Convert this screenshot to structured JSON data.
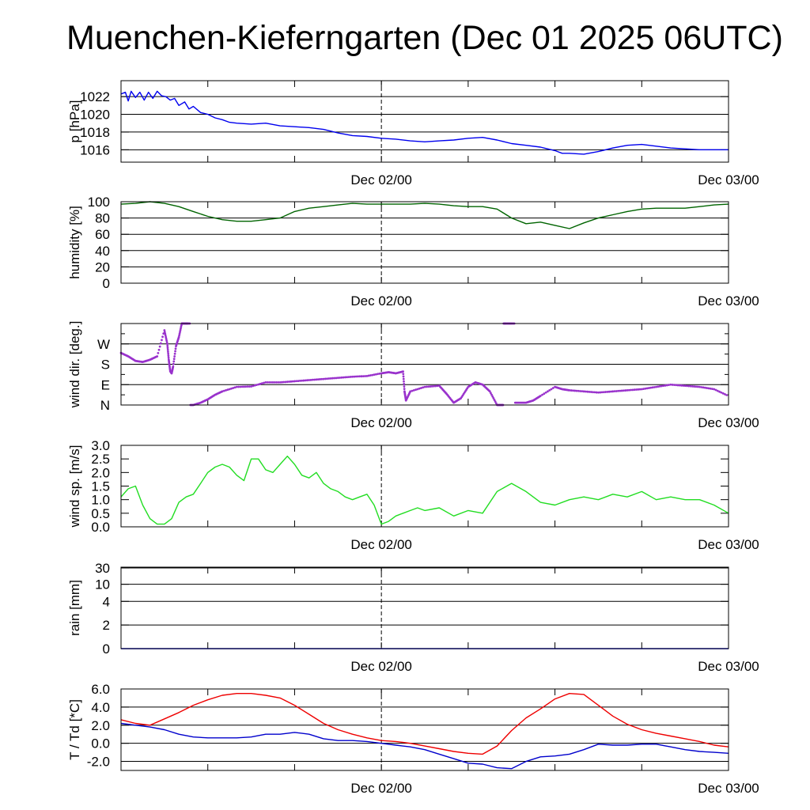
{
  "title": "Muenchen-Kieferngarten (Dec 01 2025 06UTC)",
  "chart_data": [
    {
      "type": "line",
      "id": "pressure",
      "ylabel": "p [hPa]",
      "yticks": [
        1016,
        1018,
        1020,
        1022
      ],
      "ylim": [
        1014.6,
        1023.8
      ],
      "grid": true,
      "x_unit": "hours since Dec 01 2025 06UTC",
      "xlim": [
        0,
        42
      ],
      "xticks": [
        {
          "x": 18,
          "label": "Dec 02/00"
        },
        {
          "x": 42,
          "label": "Dec 03/00"
        }
      ],
      "series": [
        {
          "color": "#0000ee",
          "x": [
            0,
            0.3,
            0.5,
            0.7,
            1.0,
            1.3,
            1.6,
            1.9,
            2.2,
            2.5,
            2.8,
            3.1,
            3.4,
            3.7,
            4.0,
            4.4,
            4.7,
            5.0,
            5.5,
            6.0,
            6.5,
            7.0,
            7.5,
            8.0,
            9.0,
            10.0,
            11.0,
            12.0,
            13.0,
            14.0,
            15.0,
            16.0,
            17.0,
            18.0,
            19.0,
            20.0,
            21.0,
            22.0,
            23.0,
            24.0,
            25.0,
            26.0,
            27.0,
            28.0,
            29.0,
            30.0,
            30.5,
            31.0,
            32.0,
            33.0,
            34.0,
            35.0,
            36.0,
            37.0,
            38.0,
            39.0,
            40.0,
            41.0,
            42.0
          ],
          "y": [
            1022.3,
            1022.5,
            1021.5,
            1022.6,
            1021.9,
            1022.5,
            1021.6,
            1022.5,
            1021.8,
            1022.6,
            1022.1,
            1022.0,
            1021.6,
            1021.8,
            1021.0,
            1021.4,
            1020.6,
            1020.9,
            1020.2,
            1020.0,
            1019.6,
            1019.4,
            1019.1,
            1019.0,
            1018.9,
            1019.0,
            1018.7,
            1018.6,
            1018.5,
            1018.3,
            1017.9,
            1017.6,
            1017.5,
            1017.3,
            1017.2,
            1017.0,
            1016.9,
            1017.0,
            1017.1,
            1017.3,
            1017.4,
            1017.1,
            1016.7,
            1016.5,
            1016.3,
            1015.9,
            1015.6,
            1015.6,
            1015.5,
            1015.8,
            1016.2,
            1016.5,
            1016.6,
            1016.4,
            1016.2,
            1016.1,
            1016.0,
            1016.0,
            1016.0
          ]
        }
      ]
    },
    {
      "type": "line",
      "id": "humidity",
      "ylabel": "humidity [%]",
      "yticks": [
        0,
        20,
        40,
        60,
        80,
        100
      ],
      "ylim": [
        0,
        100
      ],
      "grid": true,
      "x_unit": "hours since Dec 01 2025 06UTC",
      "xlim": [
        0,
        42
      ],
      "xticks": [
        {
          "x": 18,
          "label": "Dec 02/00"
        },
        {
          "x": 42,
          "label": "Dec 03/00"
        }
      ],
      "series": [
        {
          "color": "#006400",
          "x": [
            0,
            1,
            2,
            3,
            4,
            5,
            6,
            7,
            8,
            9,
            10,
            11,
            12,
            13,
            14,
            15,
            16,
            17,
            18,
            19,
            20,
            21,
            22,
            23,
            24,
            25,
            26,
            27,
            28,
            29,
            30,
            31,
            32,
            33,
            34,
            35,
            36,
            37,
            38,
            39,
            40,
            41,
            42
          ],
          "y": [
            97,
            98,
            100,
            98,
            94,
            88,
            82,
            78,
            76,
            76,
            78,
            80,
            88,
            92,
            94,
            96,
            98,
            97,
            97,
            97,
            97,
            98,
            97,
            95,
            94,
            94,
            91,
            80,
            73,
            75,
            71,
            67,
            74,
            80,
            84,
            88,
            91,
            92,
            92,
            92,
            94,
            96,
            97
          ]
        }
      ]
    },
    {
      "type": "scatter",
      "id": "wind-direction",
      "ylabel": "wind dir. [deg.]",
      "yticks": [
        {
          "value": 0,
          "label": "N"
        },
        {
          "value": 90,
          "label": "E"
        },
        {
          "value": 180,
          "label": "S"
        },
        {
          "value": 270,
          "label": "W"
        }
      ],
      "ylim": [
        0,
        360
      ],
      "grid": true,
      "x_unit": "hours since Dec 01 2025 06UTC",
      "xlim": [
        0,
        42
      ],
      "xticks": [
        {
          "x": 18,
          "label": "Dec 02/00"
        },
        {
          "x": 42,
          "label": "Dec 03/00"
        }
      ],
      "series": [
        {
          "color": "#9932cc",
          "x": [
            0,
            0.5,
            1.0,
            1.5,
            2.0,
            2.5,
            3.0,
            3.2,
            3.3,
            3.4,
            3.5,
            3.6,
            3.8,
            4.0,
            4.2,
            4.3,
            4.5,
            4.6,
            5.0,
            5.5,
            6.0,
            6.5,
            7.0,
            8.0,
            9.0,
            10.0,
            11.0,
            12.0,
            13.0,
            14.0,
            15.0,
            16.0,
            17.0,
            18.0,
            18.5,
            19.0,
            19.5,
            19.6,
            19.7,
            20.0,
            21.0,
            22.0,
            22.5,
            23.0,
            23.5,
            24.0,
            24.5,
            25.0,
            25.5,
            26.0,
            26.3,
            26.6,
            27.0,
            27.5,
            28.0,
            28.5,
            29.0,
            30.0,
            30.5,
            31.0,
            32.0,
            33.0,
            34.0,
            35.0,
            36.0,
            37.0,
            38.0,
            39.0,
            40.0,
            41.0,
            42.0
          ],
          "y": [
            230,
            215,
            195,
            190,
            200,
            215,
            330,
            270,
            200,
            150,
            140,
            170,
            260,
            300,
            360,
            360,
            360,
            360,
            0,
            10,
            25,
            45,
            60,
            80,
            82,
            100,
            100,
            105,
            110,
            115,
            120,
            125,
            128,
            140,
            145,
            140,
            148,
            60,
            20,
            60,
            80,
            85,
            50,
            10,
            30,
            80,
            100,
            90,
            60,
            0,
            0,
            360,
            360,
            10,
            10,
            20,
            40,
            80,
            70,
            65,
            60,
            55,
            60,
            65,
            70,
            80,
            90,
            85,
            80,
            70,
            40
          ]
        }
      ]
    },
    {
      "type": "line",
      "id": "wind-speed",
      "ylabel": "wind sp. [m/s]",
      "yticks": [
        0.0,
        0.5,
        1.0,
        1.5,
        2.0,
        2.5,
        3.0
      ],
      "ylim": [
        0,
        3.0
      ],
      "grid": false,
      "x_unit": "hours since Dec 01 2025 06UTC",
      "xlim": [
        0,
        42
      ],
      "xticks": [
        {
          "x": 18,
          "label": "Dec 02/00"
        },
        {
          "x": 42,
          "label": "Dec 03/00"
        }
      ],
      "series": [
        {
          "color": "#22dd22",
          "x": [
            0,
            0.5,
            1.0,
            1.5,
            2.0,
            2.5,
            3.0,
            3.5,
            4.0,
            4.5,
            5.0,
            5.5,
            6.0,
            6.5,
            7.0,
            7.5,
            8.0,
            8.5,
            9.0,
            9.5,
            10.0,
            10.5,
            11.0,
            11.5,
            12.0,
            12.5,
            13.0,
            13.5,
            14.0,
            14.5,
            15.0,
            15.5,
            16.0,
            16.5,
            17.0,
            17.5,
            18.0,
            18.5,
            19.0,
            19.5,
            20.0,
            20.5,
            21.0,
            22.0,
            23.0,
            24.0,
            25.0,
            26.0,
            27.0,
            28.0,
            29.0,
            30.0,
            31.0,
            32.0,
            33.0,
            34.0,
            35.0,
            36.0,
            37.0,
            38.0,
            39.0,
            40.0,
            41.0,
            42.0
          ],
          "y": [
            1.1,
            1.4,
            1.5,
            0.8,
            0.3,
            0.1,
            0.1,
            0.3,
            0.9,
            1.1,
            1.2,
            1.6,
            2.0,
            2.2,
            2.3,
            2.2,
            1.9,
            1.7,
            2.5,
            2.5,
            2.1,
            2.0,
            2.3,
            2.6,
            2.3,
            1.9,
            1.8,
            2.0,
            1.6,
            1.4,
            1.3,
            1.1,
            1.0,
            1.1,
            1.2,
            0.8,
            0.1,
            0.2,
            0.4,
            0.5,
            0.6,
            0.7,
            0.6,
            0.7,
            0.4,
            0.6,
            0.5,
            1.3,
            1.6,
            1.3,
            0.9,
            0.8,
            1.0,
            1.1,
            1.0,
            1.2,
            1.1,
            1.3,
            1.0,
            1.1,
            1.0,
            1.0,
            0.8,
            0.5
          ]
        }
      ]
    },
    {
      "type": "line",
      "id": "rain",
      "ylabel": "rain [mm]",
      "yticks": [
        {
          "value": 0,
          "label": "0"
        },
        {
          "value": 2,
          "label": "2"
        },
        {
          "value": 4,
          "label": "4"
        },
        {
          "value": 10,
          "label": "10"
        },
        {
          "value": 30,
          "label": "30"
        }
      ],
      "ylim": [
        0,
        30
      ],
      "grid": true,
      "x_unit": "hours since Dec 01 2025 06UTC",
      "xlim": [
        0,
        42
      ],
      "xticks": [
        {
          "x": 18,
          "label": "Dec 02/00"
        },
        {
          "x": 42,
          "label": "Dec 03/00"
        }
      ],
      "series": [
        {
          "color": "#0000ee",
          "x": [
            0,
            42
          ],
          "y": [
            0,
            0
          ]
        }
      ]
    },
    {
      "type": "line",
      "id": "temperature",
      "ylabel": "T / Td [*C]",
      "yticks": [
        -2.0,
        0.0,
        2.0,
        4.0,
        6.0
      ],
      "ylim": [
        -3.0,
        6.0
      ],
      "grid": true,
      "x_unit": "hours since Dec 01 2025 06UTC",
      "xlim": [
        0,
        42
      ],
      "xticks": [
        {
          "x": 18,
          "label": "Dec 02/00"
        },
        {
          "x": 42,
          "label": "Dec 03/00"
        }
      ],
      "series": [
        {
          "color": "#ee0000",
          "x": [
            0,
            1,
            2,
            3,
            4,
            5,
            6,
            7,
            8,
            9,
            10,
            11,
            12,
            13,
            14,
            15,
            16,
            17,
            18,
            19,
            20,
            21,
            22,
            23,
            24,
            25,
            26,
            27,
            28,
            29,
            30,
            31,
            32,
            33,
            34,
            35,
            36,
            37,
            38,
            39,
            40,
            41,
            42
          ],
          "y": [
            2.6,
            2.2,
            2.0,
            2.7,
            3.4,
            4.2,
            4.8,
            5.3,
            5.5,
            5.5,
            5.3,
            5.0,
            4.2,
            3.2,
            2.2,
            1.5,
            1.0,
            0.6,
            0.3,
            0.2,
            0.0,
            -0.3,
            -0.6,
            -0.9,
            -1.1,
            -1.2,
            -0.3,
            1.4,
            2.8,
            3.8,
            4.9,
            5.5,
            5.4,
            4.2,
            3.0,
            2.1,
            1.5,
            1.1,
            0.8,
            0.5,
            0.2,
            -0.2,
            -0.4
          ]
        },
        {
          "color": "#0000cc",
          "x": [
            0,
            1,
            2,
            3,
            4,
            5,
            6,
            7,
            8,
            9,
            10,
            11,
            12,
            13,
            14,
            15,
            16,
            17,
            18,
            19,
            20,
            21,
            22,
            23,
            24,
            25,
            26,
            27,
            28,
            29,
            30,
            31,
            32,
            33,
            34,
            35,
            36,
            37,
            38,
            39,
            40,
            41,
            42
          ],
          "y": [
            2.2,
            2.0,
            1.8,
            1.5,
            1.0,
            0.7,
            0.6,
            0.6,
            0.6,
            0.7,
            1.0,
            1.0,
            1.2,
            1.0,
            0.5,
            0.3,
            0.3,
            0.2,
            0.0,
            -0.2,
            -0.4,
            -0.7,
            -1.2,
            -1.7,
            -2.2,
            -2.3,
            -2.7,
            -2.8,
            -2.0,
            -1.5,
            -1.4,
            -1.2,
            -0.7,
            -0.1,
            -0.2,
            -0.2,
            -0.1,
            -0.1,
            -0.4,
            -0.7,
            -0.9,
            -1.0,
            -1.1
          ]
        }
      ]
    }
  ]
}
